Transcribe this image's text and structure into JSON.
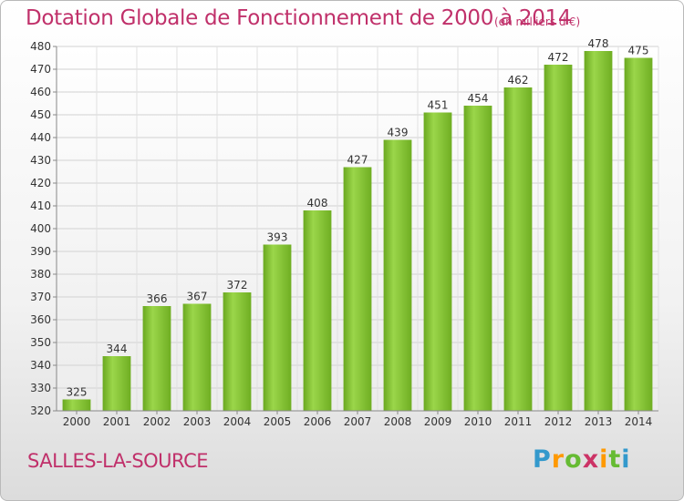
{
  "header": {
    "title": "Dotation Globale de Fonctionnement de 2000 à 2014",
    "subtitle": "(en milliers d'€)"
  },
  "footer": {
    "place": "SALLES-LA-SOURCE",
    "logo_letters": [
      "P",
      "r",
      "o",
      "x",
      "i",
      "t",
      "i"
    ],
    "logo_colors": [
      "#3399cc",
      "#ff9900",
      "#66bb33",
      "#cc3366",
      "#ff9900",
      "#66bb33",
      "#3399cc"
    ]
  },
  "chart_data": {
    "type": "bar",
    "title": "Dotation Globale de Fonctionnement de 2000 à 2014",
    "subtitle": "(en milliers d'€)",
    "categories": [
      "2000",
      "2001",
      "2002",
      "2003",
      "2004",
      "2005",
      "2006",
      "2007",
      "2008",
      "2009",
      "2010",
      "2011",
      "2012",
      "2013",
      "2014"
    ],
    "values": [
      325,
      344,
      366,
      367,
      372,
      393,
      408,
      427,
      439,
      451,
      454,
      462,
      472,
      478,
      475
    ],
    "xlabel": "",
    "ylabel": "",
    "ylim": [
      320,
      480
    ],
    "yticks": [
      320,
      330,
      340,
      350,
      360,
      370,
      380,
      390,
      400,
      410,
      420,
      430,
      440,
      450,
      460,
      470,
      480
    ],
    "grid": true,
    "bar_color": "#7cbf2e",
    "bar_color_light": "#9bd64a"
  }
}
